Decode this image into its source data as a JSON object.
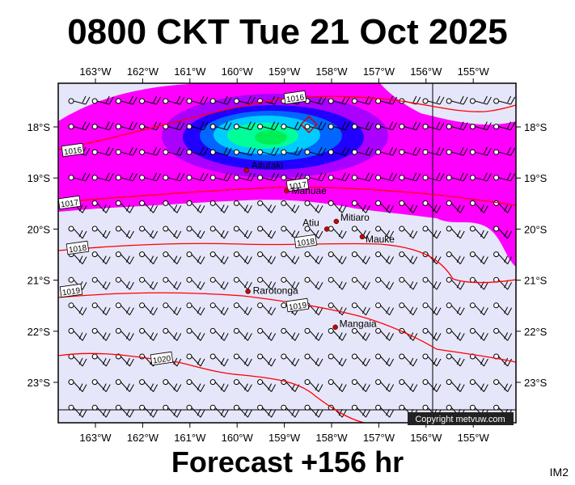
{
  "title": "0800 CKT Tue 21 Oct 2025",
  "footer": "Forecast +156 hr",
  "image_code": "IM2",
  "copyright": "Copyright metvuw.com",
  "axes": {
    "lon_labels": [
      "163°W",
      "162°W",
      "161°W",
      "160°W",
      "159°W",
      "158°W",
      "157°W",
      "156°W",
      "155°W"
    ],
    "lon_values": [
      -163,
      -162,
      -161,
      -160,
      -159,
      -158,
      -157,
      -156,
      -155
    ],
    "lat_labels": [
      "18°S",
      "19°S",
      "20°S",
      "21°S",
      "22°S",
      "23°S"
    ],
    "lat_values": [
      -18,
      -19,
      -20,
      -21,
      -22,
      -23
    ]
  },
  "places": [
    {
      "name": "Aitutaki",
      "lon": -159.8,
      "lat": -18.85
    },
    {
      "name": "Manuae",
      "lon": -158.95,
      "lat": -19.25
    },
    {
      "name": "Mitiaro",
      "lon": -157.9,
      "lat": -19.85
    },
    {
      "name": "Atiu",
      "lon": -158.1,
      "lat": -20.0
    },
    {
      "name": "Mauke",
      "lon": -157.35,
      "lat": -20.15
    },
    {
      "name": "Rarotonga",
      "lon": -159.77,
      "lat": -21.22
    },
    {
      "name": "Mangaia",
      "lon": -157.92,
      "lat": -21.92
    }
  ],
  "isobar_labels": [
    "1016",
    "1016",
    "1017",
    "1017",
    "1018",
    "1018",
    "1019",
    "1019",
    "1020"
  ],
  "colors": {
    "background": "#e6e6fa",
    "magenta": "#ff00ff",
    "purple": "#aa00ff",
    "blue": "#0000ff",
    "cyan": "#00ccff",
    "green": "#00ff88",
    "isobar": "#ff0000",
    "place_dot": "#cc0000"
  }
}
